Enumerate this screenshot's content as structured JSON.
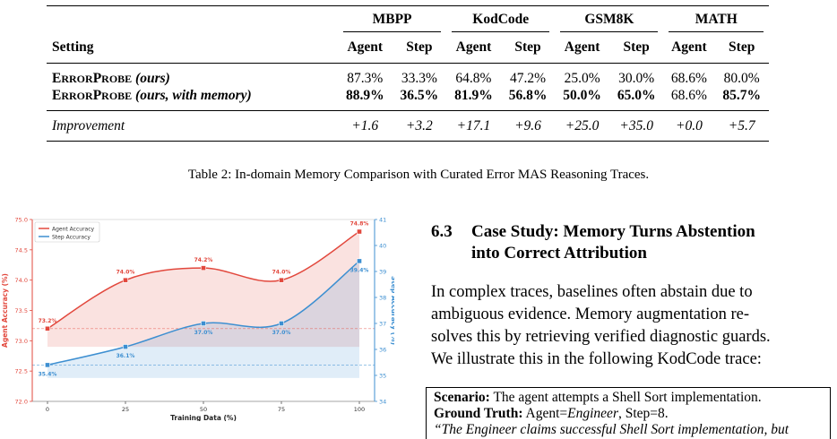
{
  "table": {
    "groups": [
      "MBPP",
      "KodCode",
      "GSM8K",
      "MATH"
    ],
    "setting_header": "Setting",
    "sub_headers": [
      "Agent",
      "Step",
      "Agent",
      "Step",
      "Agent",
      "Step",
      "Agent",
      "Step"
    ],
    "rows": [
      {
        "name_big1": "E",
        "name_small1": "RROR",
        "name_big2": "P",
        "name_small2": "ROBE",
        "suffix": " (ours)",
        "values": [
          "87.3%",
          "33.3%",
          "64.8%",
          "47.2%",
          "25.0%",
          "30.0%",
          "68.6%",
          "80.0%"
        ],
        "bold": [
          false,
          false,
          false,
          false,
          false,
          false,
          false,
          false
        ]
      },
      {
        "name_big1": "E",
        "name_small1": "RROR",
        "name_big2": "P",
        "name_small2": "ROBE",
        "suffix": " (ours, with memory)",
        "values": [
          "88.9%",
          "36.5%",
          "81.9%",
          "56.8%",
          "50.0%",
          "65.0%",
          "68.6%",
          "85.7%"
        ],
        "bold": [
          true,
          true,
          true,
          true,
          true,
          true,
          false,
          true
        ]
      }
    ],
    "improvement": {
      "label": "Improvement",
      "values": [
        "+1.6",
        "+3.2",
        "+17.1",
        "+9.6",
        "+25.0",
        "+35.0",
        "+0.0",
        "+5.7"
      ]
    }
  },
  "caption": "Table 2: In-domain Memory Comparison with Curated Error MAS Reasoning Traces.",
  "chart_data": {
    "type": "line",
    "x": [
      0,
      25,
      50,
      75,
      100
    ],
    "xlabel": "Training Data (%)",
    "ylabel_left": "Agent Accuracy (%)",
    "ylabel_right": "Step Accuracy (%)",
    "ylim_left": [
      72.0,
      75.0
    ],
    "ylim_right": [
      34,
      41
    ],
    "left_ticks": [
      "72.0",
      "72.5",
      "73.0",
      "73.5",
      "74.0",
      "74.5",
      "75.0"
    ],
    "right_ticks": [
      "34",
      "35",
      "36",
      "37",
      "38",
      "39",
      "40",
      "41"
    ],
    "x_ticks": [
      "0",
      "25",
      "50",
      "75",
      "100"
    ],
    "legend_position": "top-left",
    "series": [
      {
        "name": "Agent Accuracy",
        "axis": "left",
        "color": "#e2483d",
        "values": [
          73.2,
          74.0,
          74.2,
          74.0,
          74.8
        ],
        "labels": [
          "73.2%",
          "74.0%",
          "74.2%",
          "74.0%",
          "74.8%"
        ],
        "baseline": 73.2
      },
      {
        "name": "Step Accuracy",
        "axis": "right",
        "color": "#3d8fd1",
        "values": [
          35.4,
          36.1,
          37.0,
          37.0,
          39.4
        ],
        "labels": [
          "35.4%",
          "36.1%",
          "37.0%",
          "37.0%",
          "39.4%"
        ],
        "baseline": 35.4
      }
    ]
  },
  "section": {
    "number": "6.3",
    "title_line1": "Case Study: Memory Turns Abstention",
    "title_line2": "into Correct Attribution",
    "para_lines": [
      "In complex traces, baselines often abstain due to",
      "ambiguous evidence.  Memory augmentation re-",
      "solves this by retrieving verified diagnostic guards.",
      "We illustrate this in the following KodCode trace:"
    ]
  },
  "box": {
    "scenario_label": "Scenario:",
    "scenario_text": " The agent attempts a Shell Sort implementation.",
    "truth_label": "Ground Truth:",
    "truth_text_pre": " Agent=",
    "truth_agent": "Engineer",
    "truth_text_post": ", Step=8.",
    "quote": "“The Engineer claims successful Shell Sort implementation, but"
  }
}
